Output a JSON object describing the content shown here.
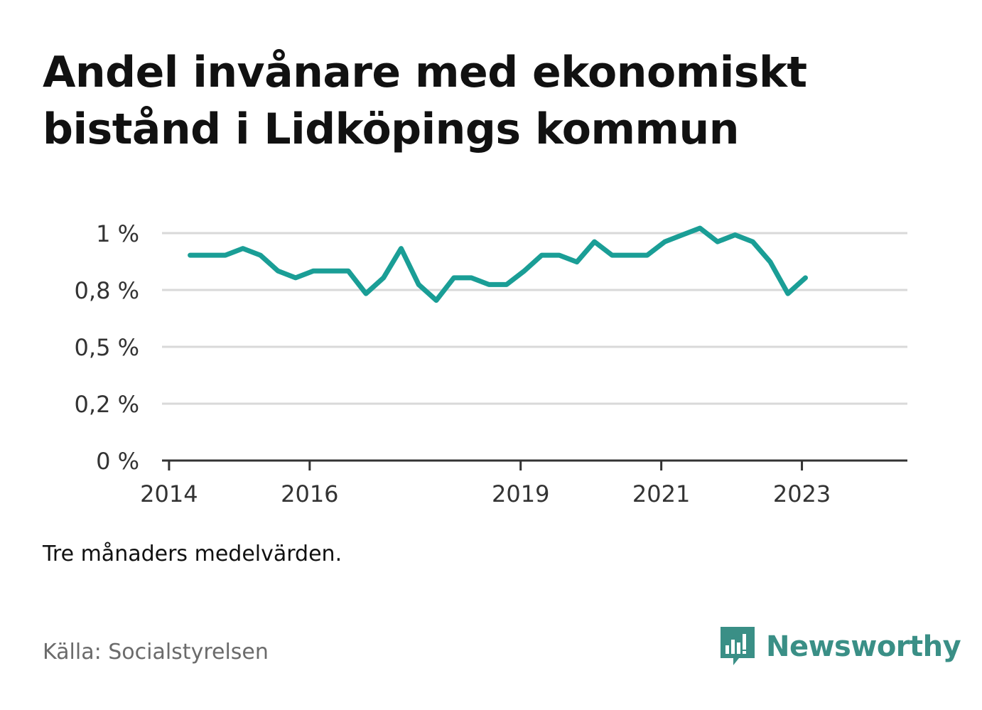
{
  "title_lines": [
    "Andel invånare med ekonomiskt",
    "bistånd i Lidköpings kommun"
  ],
  "note": "Tre månaders medelvärden.",
  "source": "Källa: Socialstyrelsen",
  "brand": "Newsworthy",
  "colors": {
    "line": "#1a9e96",
    "grid": "#d9d9d9",
    "axis": "#333333",
    "brand": "#3a8f86"
  },
  "chart_data": {
    "type": "line",
    "title": "Andel invånare med ekonomiskt bistånd i Lidköpings kommun",
    "xlabel": "",
    "ylabel": "",
    "ylim": [
      0,
      1.008
    ],
    "y_ticks": [
      {
        "value": 0,
        "label": "0 %"
      },
      {
        "value": 0.252,
        "label": "0,2 %"
      },
      {
        "value": 0.504,
        "label": "0,5 %"
      },
      {
        "value": 0.756,
        "label": "0,8 %"
      },
      {
        "value": 1.008,
        "label": "1 %"
      }
    ],
    "x_ticks": [
      {
        "value": 2014,
        "label": "2014"
      },
      {
        "value": 2016,
        "label": "2016"
      },
      {
        "value": 2019,
        "label": "2019"
      },
      {
        "value": 2021,
        "label": "2021"
      },
      {
        "value": 2023,
        "label": "2023"
      }
    ],
    "xlim": [
      2013.9,
      2024.5
    ],
    "grid": true,
    "series": [
      {
        "x": [
          2014.3,
          2014.55,
          2014.8,
          2015.05,
          2015.3,
          2015.55,
          2015.8,
          2016.05,
          2016.3,
          2016.55,
          2016.8,
          2017.05,
          2017.3,
          2017.55,
          2017.8,
          2018.05,
          2018.3,
          2018.55,
          2018.8,
          2019.05,
          2019.3,
          2019.55,
          2019.8,
          2020.05,
          2020.3,
          2020.55,
          2020.8,
          2021.05,
          2021.3,
          2021.55,
          2021.8,
          2022.05,
          2022.3,
          2022.55,
          2022.8,
          2023.05
        ],
        "values": [
          0.91,
          0.91,
          0.91,
          0.94,
          0.91,
          0.84,
          0.81,
          0.84,
          0.84,
          0.84,
          0.74,
          0.81,
          0.94,
          0.78,
          0.71,
          0.81,
          0.81,
          0.78,
          0.78,
          0.84,
          0.91,
          0.91,
          0.88,
          0.97,
          0.91,
          0.91,
          0.91,
          0.97,
          1.0,
          1.03,
          0.97,
          1.0,
          0.97,
          0.88,
          0.74,
          0.81
        ]
      }
    ]
  }
}
